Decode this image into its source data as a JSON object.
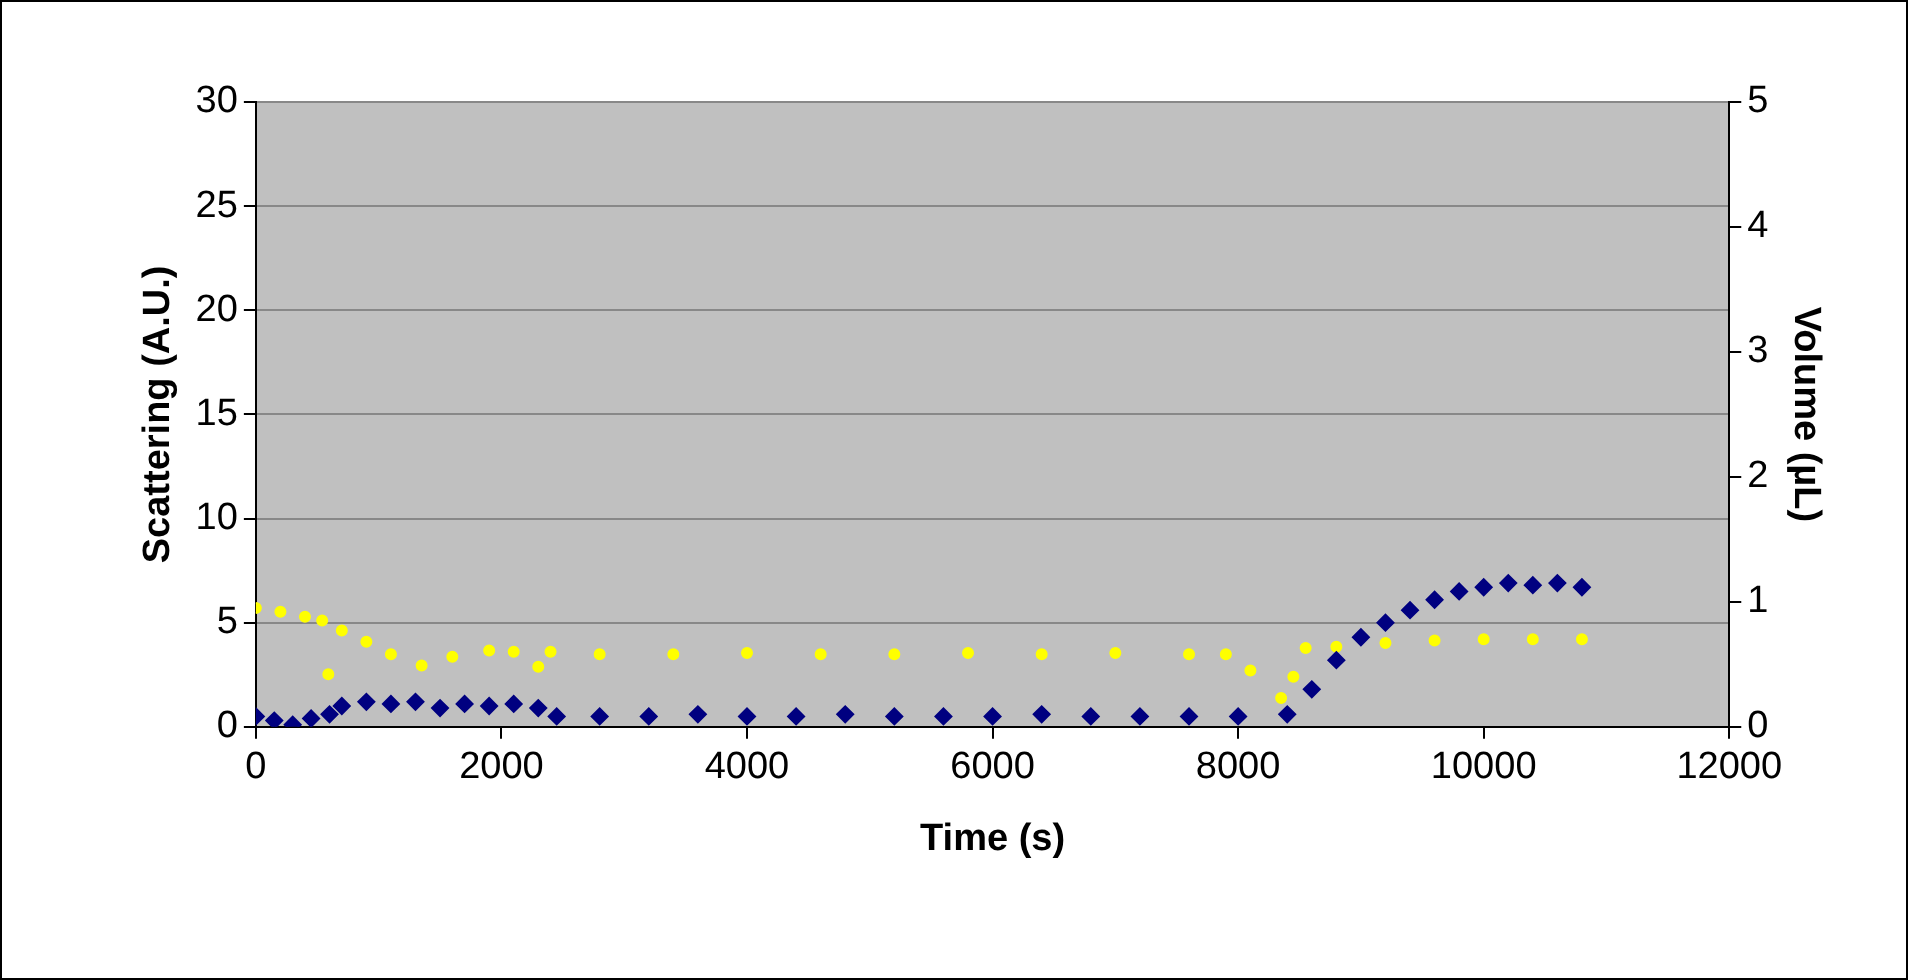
{
  "chart_data": {
    "type": "scatter",
    "xlabel": "Time (s)",
    "ylabel": "Scattering (A.U.)",
    "y2label": "Volume (µL)",
    "xlim": [
      0,
      12000
    ],
    "xticks": [
      0,
      2000,
      4000,
      6000,
      8000,
      10000,
      12000
    ],
    "ylim": [
      0,
      30
    ],
    "yticks": [
      0,
      5,
      10,
      15,
      20,
      25,
      30
    ],
    "y2lim": [
      0,
      5
    ],
    "y2ticks": [
      0,
      1,
      2,
      3,
      4,
      5
    ],
    "grid": "y",
    "legend": false,
    "series": [
      {
        "color": "#000080",
        "marker": "diamond",
        "x": [
          0,
          150,
          300,
          450,
          600,
          700,
          900,
          1100,
          1300,
          1500,
          1700,
          1900,
          2100,
          2300,
          2450,
          2800,
          3200,
          3600,
          4000,
          4400,
          4800,
          5200,
          5600,
          6000,
          6400,
          6800,
          7200,
          7600,
          8000,
          8400,
          8600,
          8800,
          9000,
          9200,
          9400,
          9600,
          9800,
          10000,
          10200,
          10400,
          10600,
          10800
        ],
        "values": [
          0.5,
          0.3,
          0.1,
          0.4,
          0.6,
          1.0,
          1.2,
          1.1,
          1.2,
          0.9,
          1.1,
          1.0,
          1.1,
          0.9,
          0.5,
          0.5,
          0.5,
          0.6,
          0.5,
          0.5,
          0.6,
          0.5,
          0.5,
          0.5,
          0.6,
          0.5,
          0.5,
          0.5,
          0.5,
          0.6,
          1.8,
          3.2,
          4.3,
          5.0,
          5.6,
          6.1,
          6.5,
          6.7,
          6.9,
          6.8,
          6.9,
          6.7
        ]
      },
      {
        "color": "#ffff00",
        "marker": "circle",
        "axis": "y2",
        "x": [
          0,
          200,
          400,
          540,
          590,
          700,
          900,
          1100,
          1350,
          1600,
          1900,
          2100,
          2300,
          2400,
          2800,
          3400,
          4000,
          4600,
          5200,
          5800,
          6400,
          7000,
          7600,
          7900,
          8100,
          8350,
          8450,
          8550,
          8800,
          9200,
          9600,
          10000,
          10400,
          10800
        ],
        "values": [
          0.95,
          0.92,
          0.88,
          0.85,
          0.42,
          0.77,
          0.68,
          0.58,
          0.49,
          0.56,
          0.61,
          0.6,
          0.48,
          0.6,
          0.58,
          0.58,
          0.59,
          0.58,
          0.58,
          0.59,
          0.58,
          0.59,
          0.58,
          0.58,
          0.45,
          0.23,
          0.4,
          0.63,
          0.64,
          0.67,
          0.69,
          0.7,
          0.7,
          0.7
        ]
      }
    ]
  }
}
